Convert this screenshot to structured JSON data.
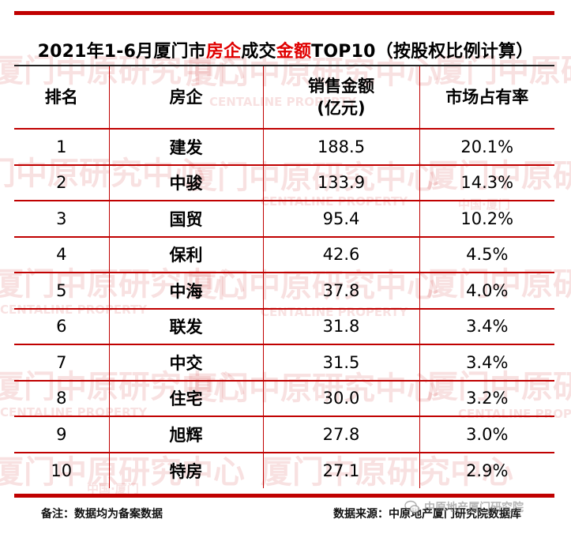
{
  "title": {
    "prefix": "2021年1-6月厦门市",
    "highlight1": "房企",
    "middle": "成交",
    "highlight2": "金额",
    "suffix": "TOP10（按股权比例计算）"
  },
  "table": {
    "headers": {
      "rank": "排名",
      "company": "房企",
      "sales_line1": "销售金额",
      "sales_line2": "(亿元)",
      "share": "市场占有率"
    },
    "rows": [
      {
        "rank": "1",
        "company": "建发",
        "sales": "188.5",
        "share": "20.1%"
      },
      {
        "rank": "2",
        "company": "中骏",
        "sales": "133.9",
        "share": "14.3%"
      },
      {
        "rank": "3",
        "company": "国贸",
        "sales": "95.4",
        "share": "10.2%"
      },
      {
        "rank": "4",
        "company": "保利",
        "sales": "42.6",
        "share": "4.5%"
      },
      {
        "rank": "5",
        "company": "中海",
        "sales": "37.8",
        "share": "4.0%"
      },
      {
        "rank": "6",
        "company": "联发",
        "sales": "31.8",
        "share": "3.4%"
      },
      {
        "rank": "7",
        "company": "中交",
        "sales": "31.5",
        "share": "3.4%"
      },
      {
        "rank": "8",
        "company": "住宅",
        "sales": "30.0",
        "share": "3.2%"
      },
      {
        "rank": "9",
        "company": "旭辉",
        "sales": "27.8",
        "share": "3.0%"
      },
      {
        "rank": "10",
        "company": "特房",
        "sales": "27.1",
        "share": "2.9%"
      }
    ]
  },
  "footer": {
    "note": "备注：数据均为备案数据",
    "source": "数据来源：中原地产厦门研究院数据库"
  },
  "watermark": {
    "main": "厦门中原研究中心",
    "english": "CENTALINE PROPERTY",
    "region": "中国·厦门",
    "wechat": "中原地产厦门研究院"
  },
  "colors": {
    "accent": "#c00000",
    "title_highlight": "#e00000",
    "watermark": "#d24646"
  }
}
